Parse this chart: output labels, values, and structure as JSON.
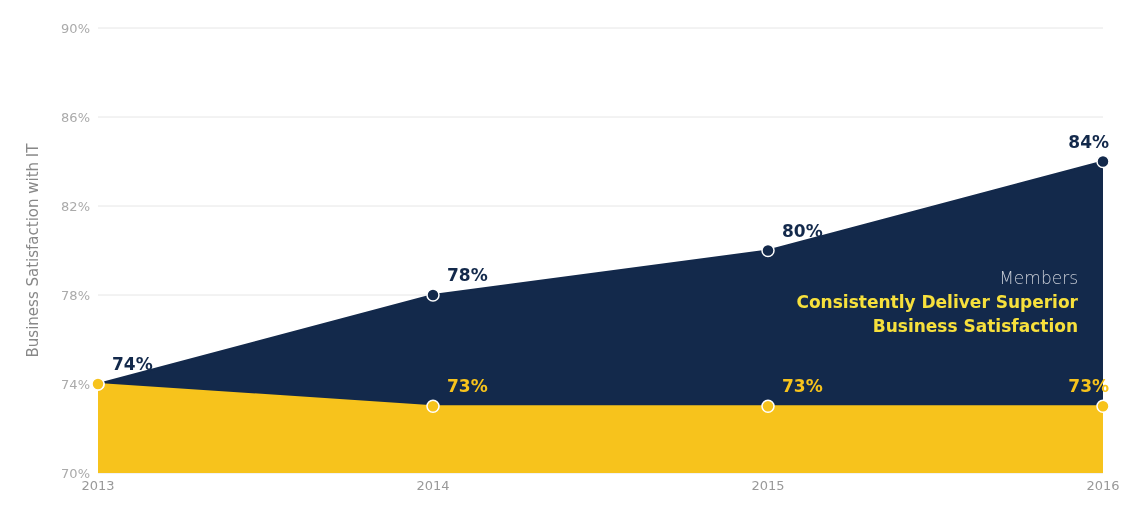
{
  "chart_data": {
    "type": "area",
    "ylabel": "Business Satisfaction with IT",
    "categories": [
      "2013",
      "2014",
      "2015",
      "2016"
    ],
    "series": [
      {
        "color": "#13294b",
        "values": [
          74,
          78,
          80,
          84
        ],
        "value_labels": [
          "74%",
          "78%",
          "80%",
          "84%"
        ]
      },
      {
        "color": "#f7c31c",
        "values": [
          74,
          73,
          73,
          73
        ],
        "value_labels": [
          null,
          "73%",
          "73%",
          "73%"
        ]
      }
    ],
    "ylim": [
      70,
      90
    ],
    "yticks": [
      {
        "value": 70,
        "label": "70%"
      },
      {
        "value": 74,
        "label": "74%"
      },
      {
        "value": 78,
        "label": "78%"
      },
      {
        "value": 82,
        "label": "82%"
      },
      {
        "value": 86,
        "label": "86%"
      },
      {
        "value": 90,
        "label": "90%"
      }
    ],
    "grid": "y",
    "marker": "circle",
    "annotations": [
      "Members",
      "Consistently Deliver Superior Business Satisfaction"
    ]
  }
}
